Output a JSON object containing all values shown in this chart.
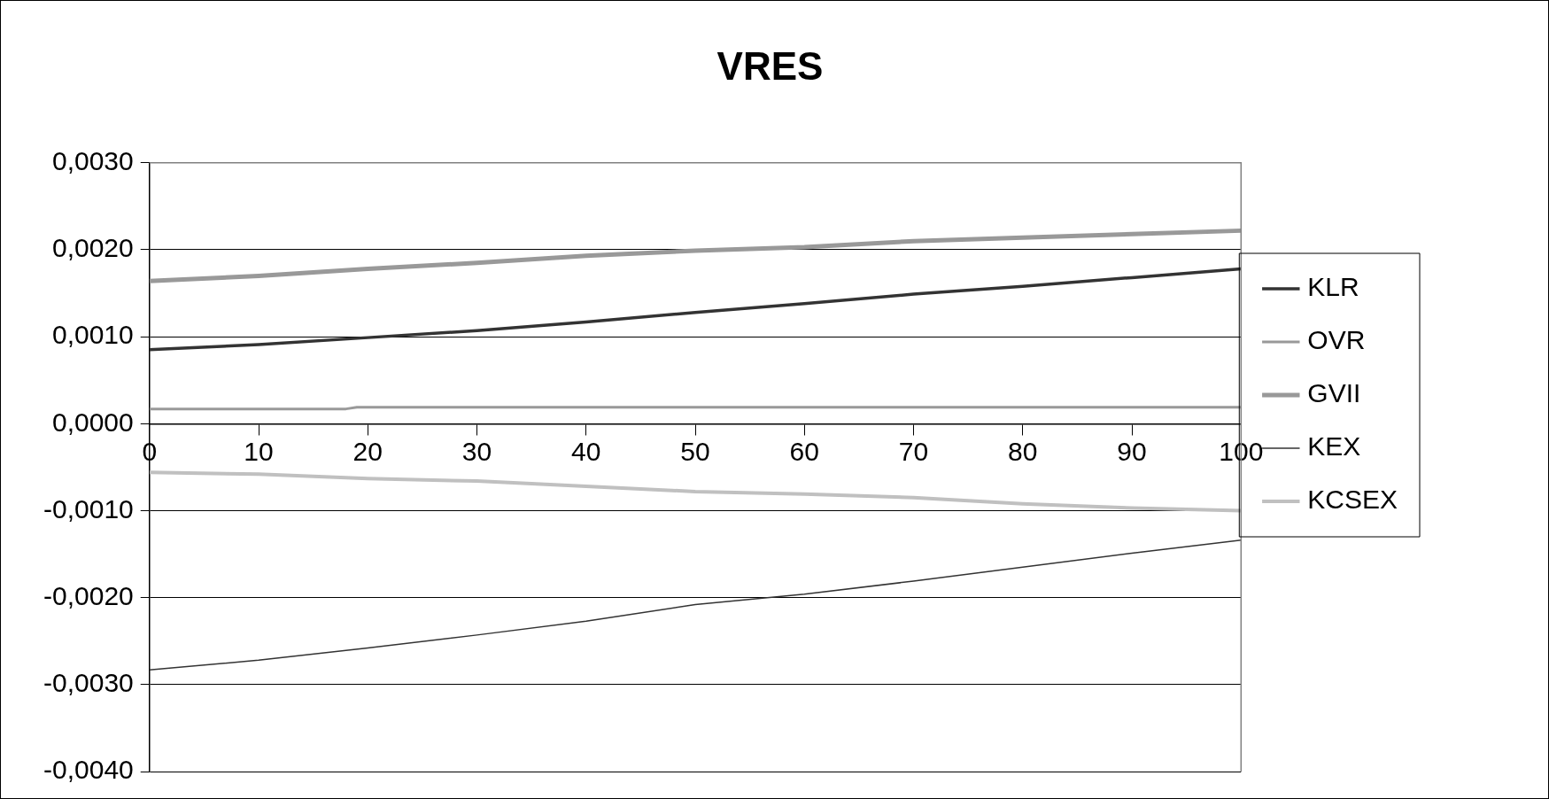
{
  "chart_data": {
    "type": "line",
    "title": "VRES",
    "xlim": [
      0,
      100
    ],
    "xticks": [
      0,
      10,
      20,
      30,
      40,
      50,
      60,
      70,
      80,
      90,
      100
    ],
    "ylim": [
      -0.004,
      0.003
    ],
    "yticks": [
      {
        "value": -0.004,
        "label": "-0,0040"
      },
      {
        "value": -0.003,
        "label": "-0,0030"
      },
      {
        "value": -0.002,
        "label": "-0,0020"
      },
      {
        "value": -0.001,
        "label": "-0,0010"
      },
      {
        "value": 0,
        "label": "0,0000"
      },
      {
        "value": 0.001,
        "label": "0,0010"
      },
      {
        "value": 0.002,
        "label": "0,0020"
      },
      {
        "value": 0.003,
        "label": "0,0030"
      }
    ],
    "grid": "y",
    "legend": "right",
    "marker": "none",
    "line_style": "solid",
    "x": [
      0,
      10,
      20,
      30,
      40,
      50,
      60,
      70,
      80,
      90,
      100
    ],
    "series": [
      {
        "name": "KLR",
        "color": "#333333",
        "values": [
          0.00085,
          0.00091,
          0.00099,
          0.00107,
          0.00117,
          0.00128,
          0.00138,
          0.00149,
          0.00158,
          0.00168,
          0.00178
        ]
      },
      {
        "name": "OVR",
        "color": "#999999",
        "x": [
          0,
          18,
          19,
          100
        ],
        "values": [
          0.00017,
          0.00017,
          0.00019,
          0.00019
        ]
      },
      {
        "name": "GVII",
        "color": "#999999",
        "values": [
          0.00164,
          0.0017,
          0.00178,
          0.00185,
          0.00193,
          0.00199,
          0.00203,
          0.0021,
          0.00214,
          0.00218,
          0.00222
        ]
      },
      {
        "name": "KEX",
        "color": "#333333",
        "values": [
          -0.00283,
          -0.00272,
          -0.00258,
          -0.00243,
          -0.00227,
          -0.00208,
          -0.00196,
          -0.00181,
          -0.00165,
          -0.00149,
          -0.00134
        ]
      },
      {
        "name": "KCSEX",
        "color": "#c0c0c0",
        "values": [
          -0.00056,
          -0.00058,
          -0.00063,
          -0.00066,
          -0.00072,
          -0.00078,
          -0.00081,
          -0.00085,
          -0.00092,
          -0.00097,
          -0.001
        ]
      }
    ]
  }
}
